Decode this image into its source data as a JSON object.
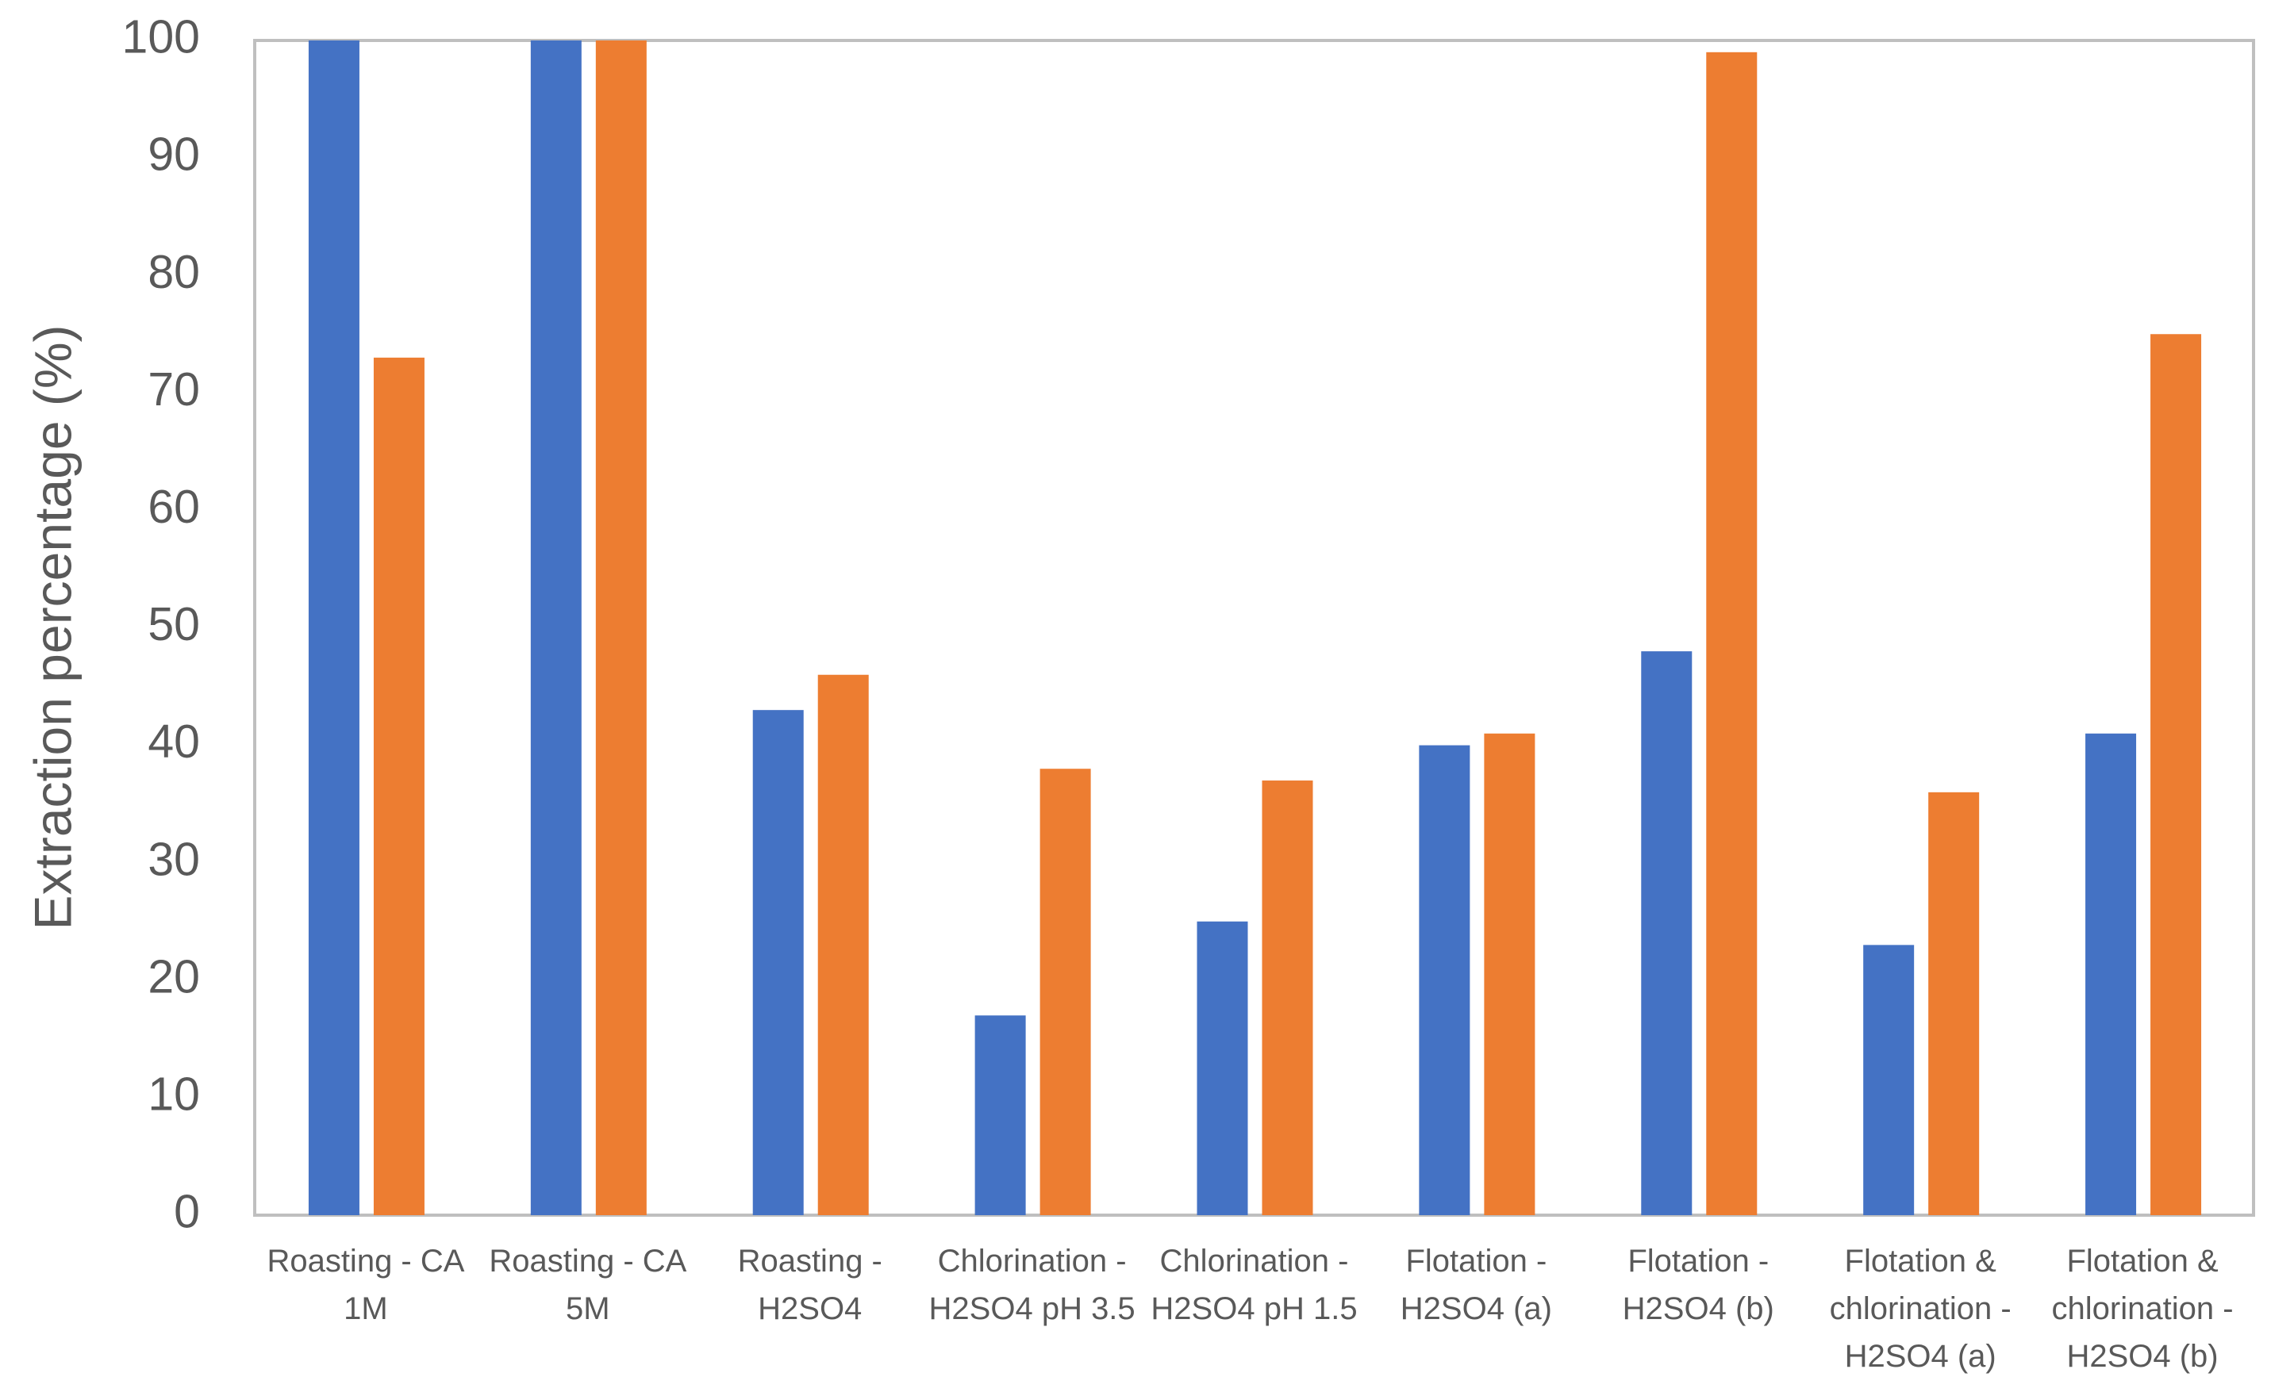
{
  "chart_data": {
    "type": "bar",
    "y_label": "Extraction  percentage (%)",
    "categories": [
      "Roasting - CA 1M",
      "Roasting - CA 5M",
      "Roasting - H2SO4",
      "Chlorination - H2SO4 pH 3.5",
      "Chlorination - H2SO4 pH 1.5",
      "Flotation - H2SO4 (a)",
      "Flotation - H2SO4 (b)",
      "Flotation & chlorination - H2SO4 (a)",
      "Flotation & chlorination - H2SO4 (b)"
    ],
    "series": [
      {
        "color": "#4472c4",
        "values": [
          100,
          100,
          43,
          17,
          25,
          40,
          48,
          23,
          41
        ]
      },
      {
        "color": "#ed7d31",
        "values": [
          73,
          100,
          46,
          38,
          37,
          41,
          99,
          36,
          75
        ]
      }
    ],
    "ylim": [
      0,
      100
    ],
    "yticks": [
      0,
      10,
      20,
      30,
      40,
      50,
      60,
      70,
      80,
      90,
      100
    ],
    "grid": false
  }
}
